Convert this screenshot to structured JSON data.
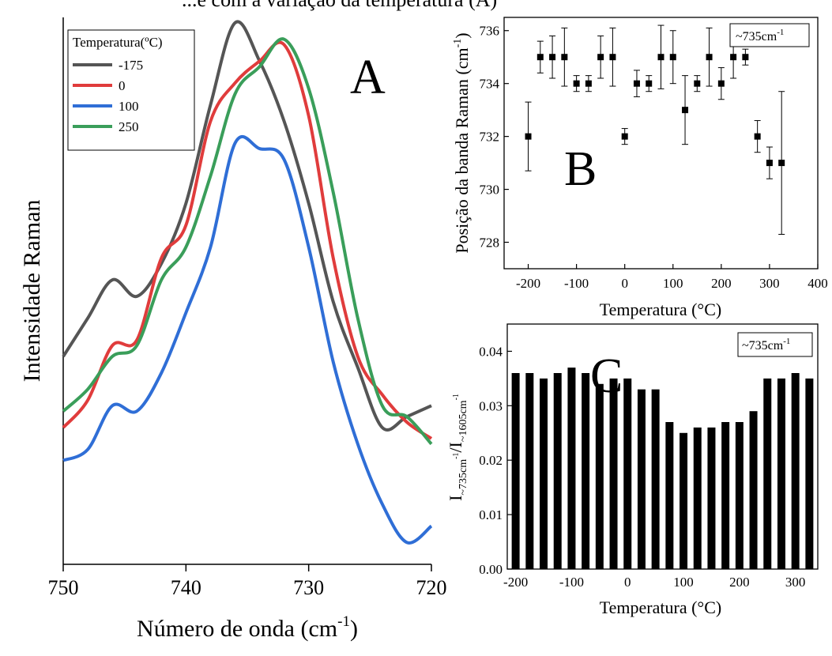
{
  "header_text": "...e com a variação da temperatura (A)",
  "chart_data": [
    {
      "type": "line",
      "panel": "A",
      "xlabel": "Número  de onda (cm",
      "xlabel_sup": "-1",
      "xlabel_close": ")",
      "ylabel": "Intensidade Raman",
      "xlim": [
        750,
        720
      ],
      "x_reversed": true,
      "xticks": [
        750,
        740,
        730,
        720
      ],
      "ylim": [
        0,
        1
      ],
      "legend_title": "Temperatura(ºC)",
      "legend_position": "top-left",
      "series": [
        {
          "name": "-175",
          "color": "#555555",
          "x": [
            750,
            748,
            746,
            744,
            742,
            740,
            738,
            736,
            734,
            732,
            730,
            728,
            726,
            724,
            722,
            720
          ],
          "y": [
            0.38,
            0.45,
            0.52,
            0.49,
            0.55,
            0.66,
            0.84,
            0.99,
            0.92,
            0.81,
            0.66,
            0.48,
            0.36,
            0.25,
            0.27,
            0.29
          ]
        },
        {
          "name": "0",
          "color": "#e03c3c",
          "x": [
            750,
            748,
            746,
            744,
            742,
            740,
            738,
            736,
            734,
            732,
            730,
            728,
            726,
            724,
            722,
            720
          ],
          "y": [
            0.25,
            0.3,
            0.4,
            0.41,
            0.56,
            0.62,
            0.81,
            0.88,
            0.92,
            0.95,
            0.82,
            0.56,
            0.38,
            0.31,
            0.26,
            0.23
          ]
        },
        {
          "name": "100",
          "color": "#2f6ed6",
          "x": [
            750,
            748,
            746,
            744,
            742,
            740,
            738,
            736,
            734,
            732,
            730,
            728,
            726,
            724,
            722,
            720
          ],
          "y": [
            0.19,
            0.21,
            0.29,
            0.28,
            0.35,
            0.46,
            0.58,
            0.77,
            0.76,
            0.74,
            0.58,
            0.37,
            0.22,
            0.11,
            0.04,
            0.07
          ]
        },
        {
          "name": "250",
          "color": "#3a9e5a",
          "x": [
            750,
            748,
            746,
            744,
            742,
            740,
            738,
            736,
            734,
            732,
            730,
            728,
            726,
            724,
            722,
            720
          ],
          "y": [
            0.28,
            0.32,
            0.38,
            0.4,
            0.52,
            0.58,
            0.71,
            0.86,
            0.91,
            0.96,
            0.87,
            0.68,
            0.45,
            0.29,
            0.27,
            0.22
          ]
        }
      ]
    },
    {
      "type": "scatter",
      "panel": "B",
      "xlabel": "Temperatura (°C)",
      "ylabel": "Posição da banda Raman (cm",
      "ylabel_sup": "-1",
      "ylabel_close": ")",
      "xlim": [
        -250,
        400
      ],
      "ylim": [
        727,
        736.5
      ],
      "xticks": [
        -200,
        -100,
        0,
        100,
        200,
        300,
        400
      ],
      "yticks": [
        728,
        730,
        732,
        734,
        736
      ],
      "annotation": "~735cm",
      "annotation_sup": "-1",
      "points": [
        {
          "x": -200,
          "y": 732,
          "err": 1.3
        },
        {
          "x": -175,
          "y": 735,
          "err": 0.6
        },
        {
          "x": -150,
          "y": 735,
          "err": 0.8
        },
        {
          "x": -125,
          "y": 735,
          "err": 1.1
        },
        {
          "x": -100,
          "y": 734,
          "err": 0.3
        },
        {
          "x": -75,
          "y": 734,
          "err": 0.3
        },
        {
          "x": -50,
          "y": 735,
          "err": 0.8
        },
        {
          "x": -25,
          "y": 735,
          "err": 1.1
        },
        {
          "x": 0,
          "y": 732,
          "err": 0.3
        },
        {
          "x": 25,
          "y": 734,
          "err": 0.5
        },
        {
          "x": 50,
          "y": 734,
          "err": 0.3
        },
        {
          "x": 75,
          "y": 735,
          "err": 1.2
        },
        {
          "x": 100,
          "y": 735,
          "err": 1.0
        },
        {
          "x": 125,
          "y": 733,
          "err": 1.3
        },
        {
          "x": 150,
          "y": 734,
          "err": 0.3
        },
        {
          "x": 175,
          "y": 735,
          "err": 1.1
        },
        {
          "x": 200,
          "y": 734,
          "err": 0.6
        },
        {
          "x": 225,
          "y": 735,
          "err": 0.8
        },
        {
          "x": 250,
          "y": 735,
          "err": 0.3
        },
        {
          "x": 275,
          "y": 732,
          "err": 0.6
        },
        {
          "x": 300,
          "y": 731,
          "err": 0.6
        },
        {
          "x": 325,
          "y": 731,
          "err": 2.7
        }
      ]
    },
    {
      "type": "bar",
      "panel": "C",
      "xlabel": "Temperatura (°C)",
      "ylabel": "I",
      "ylabel_sub1": "~735cm",
      "ylabel_sup1": "-1",
      "ylabel_mid": "/I",
      "ylabel_sub2": "~1605cm",
      "ylabel_sup2": "-1",
      "xlim": [
        -215,
        340
      ],
      "ylim": [
        0,
        0.045
      ],
      "xticks": [
        -200,
        -100,
        0,
        100,
        200,
        300
      ],
      "yticks": [
        0.0,
        0.01,
        0.02,
        0.03,
        0.04
      ],
      "ytick_labels": [
        "0.00",
        "0.01",
        "0.02",
        "0.03",
        "0.04"
      ],
      "annotation": "~735cm",
      "annotation_sup": "-1",
      "x": [
        -200,
        -175,
        -150,
        -125,
        -100,
        -75,
        -50,
        -25,
        0,
        25,
        50,
        75,
        100,
        125,
        150,
        175,
        200,
        225,
        250,
        275,
        300,
        325
      ],
      "values": [
        0.036,
        0.036,
        0.035,
        0.036,
        0.037,
        0.036,
        0.034,
        0.035,
        0.035,
        0.033,
        0.033,
        0.027,
        0.025,
        0.026,
        0.026,
        0.027,
        0.027,
        0.029,
        0.035,
        0.035,
        0.036,
        0.035
      ]
    }
  ]
}
